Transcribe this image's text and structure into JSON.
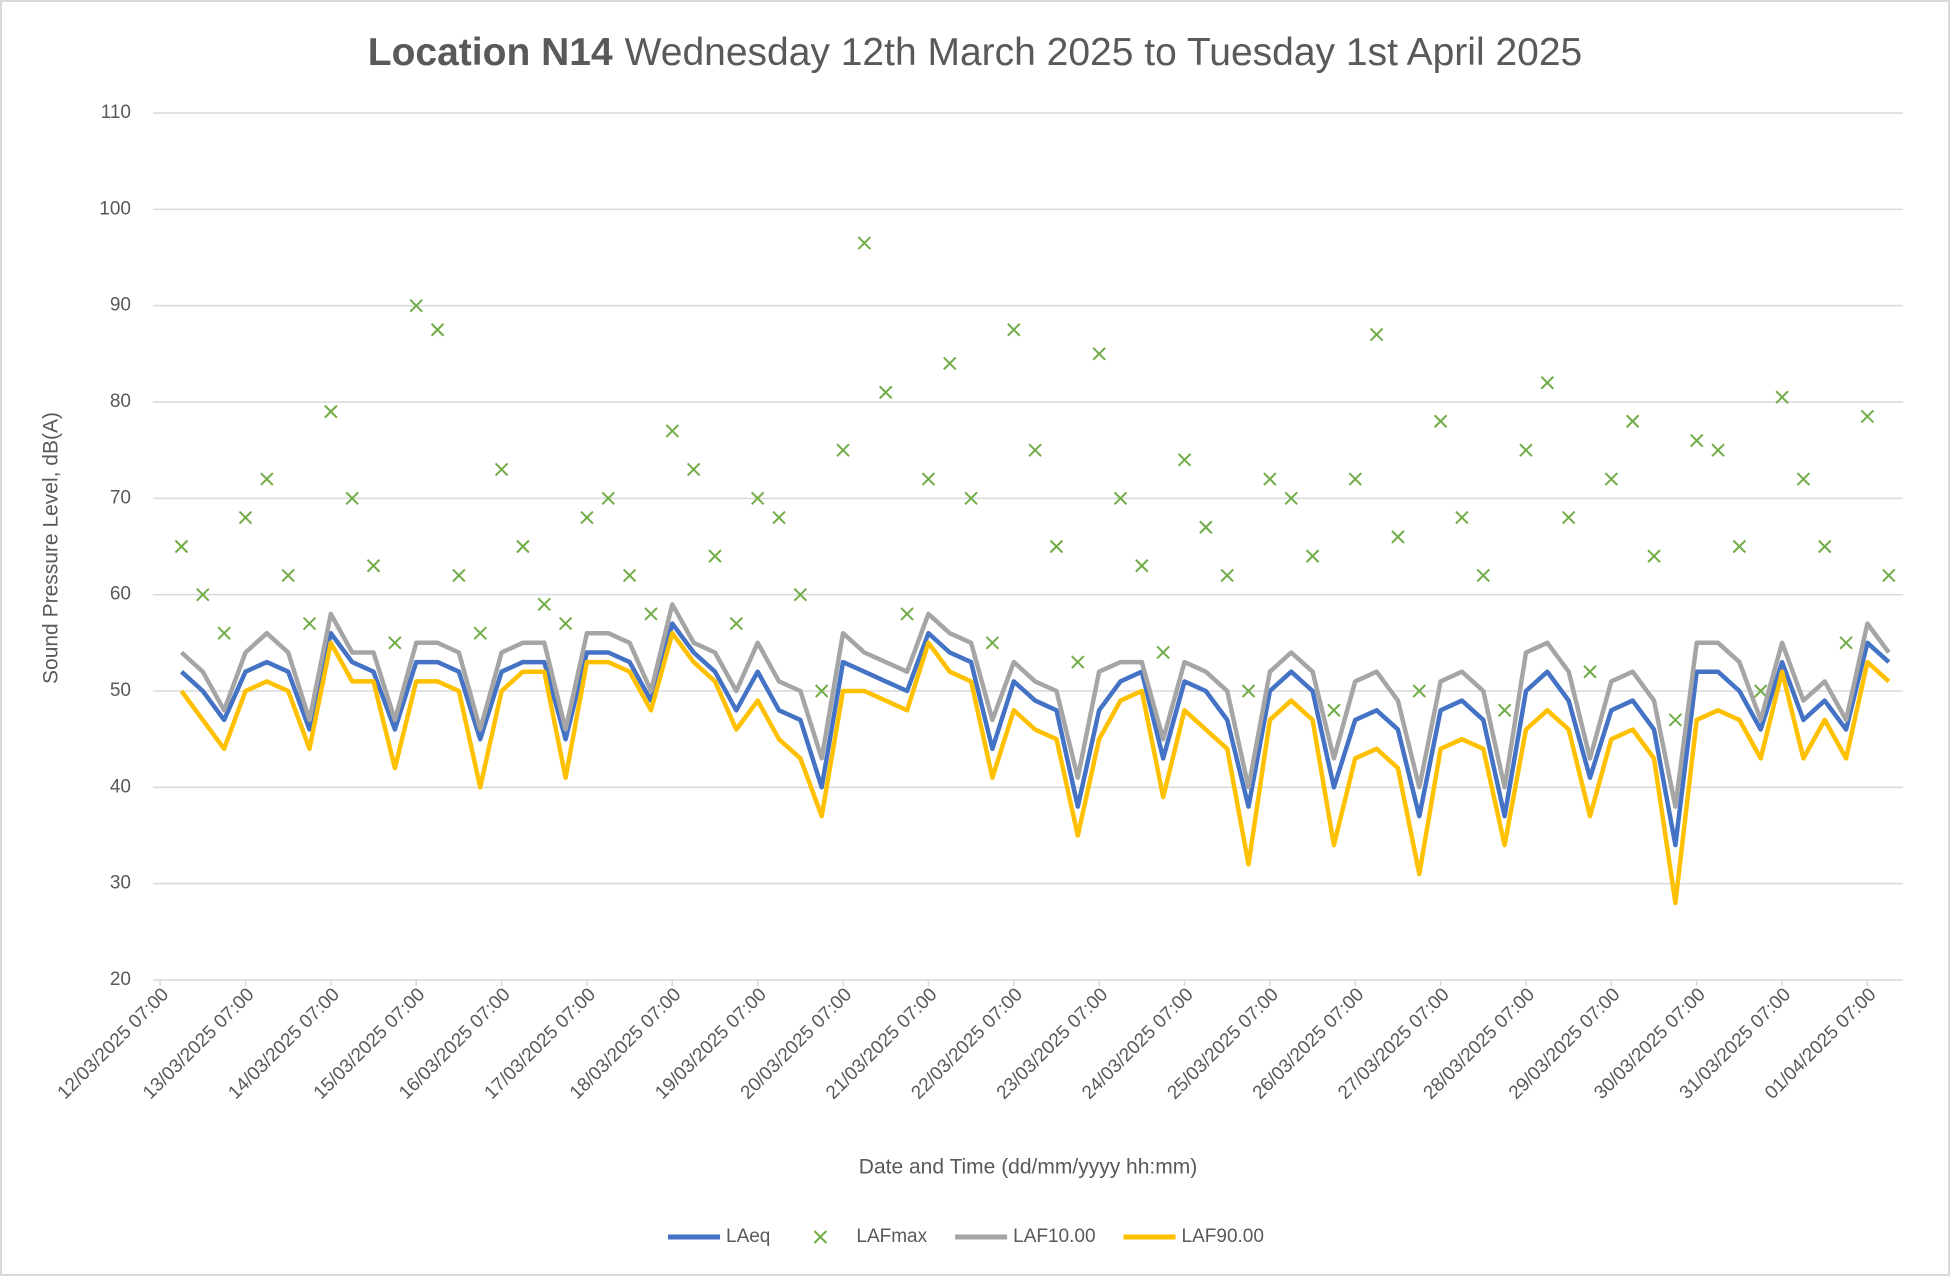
{
  "chart_data": {
    "type": "line",
    "title": [
      "Location N14",
      "Wednesday 12th March 2025 to Tuesday 1st April 2025"
    ],
    "x_label": "Date and Time (dd/mm/yyyy hh:mm)",
    "y_label": "Sound Pressure Level, dB(A)",
    "x": [
      "12/03/2025 13:00",
      "12/03/2025 19:00",
      "13/03/2025 01:00",
      "13/03/2025 07:00",
      "13/03/2025 13:00",
      "13/03/2025 19:00",
      "14/03/2025 01:00",
      "14/03/2025 07:00",
      "14/03/2025 13:00",
      "14/03/2025 19:00",
      "15/03/2025 01:00",
      "15/03/2025 07:00",
      "15/03/2025 13:00",
      "15/03/2025 19:00",
      "16/03/2025 01:00",
      "16/03/2025 07:00",
      "16/03/2025 13:00",
      "16/03/2025 19:00",
      "17/03/2025 01:00",
      "17/03/2025 07:00",
      "17/03/2025 13:00",
      "17/03/2025 19:00",
      "18/03/2025 01:00",
      "18/03/2025 07:00",
      "18/03/2025 13:00",
      "18/03/2025 19:00",
      "19/03/2025 01:00",
      "19/03/2025 07:00",
      "19/03/2025 13:00",
      "19/03/2025 19:00",
      "20/03/2025 01:00",
      "20/03/2025 07:00",
      "20/03/2025 13:00",
      "20/03/2025 19:00",
      "21/03/2025 01:00",
      "21/03/2025 07:00",
      "21/03/2025 13:00",
      "21/03/2025 19:00",
      "22/03/2025 01:00",
      "22/03/2025 07:00",
      "22/03/2025 13:00",
      "22/03/2025 19:00",
      "23/03/2025 01:00",
      "23/03/2025 07:00",
      "23/03/2025 13:00",
      "23/03/2025 19:00",
      "24/03/2025 01:00",
      "24/03/2025 07:00",
      "24/03/2025 13:00",
      "24/03/2025 19:00",
      "25/03/2025 01:00",
      "25/03/2025 07:00",
      "25/03/2025 13:00",
      "25/03/2025 19:00",
      "26/03/2025 01:00",
      "26/03/2025 07:00",
      "26/03/2025 13:00",
      "26/03/2025 19:00",
      "27/03/2025 01:00",
      "27/03/2025 07:00",
      "27/03/2025 13:00",
      "27/03/2025 19:00",
      "28/03/2025 01:00",
      "28/03/2025 07:00",
      "28/03/2025 13:00",
      "28/03/2025 19:00",
      "29/03/2025 01:00",
      "29/03/2025 07:00",
      "29/03/2025 13:00",
      "29/03/2025 19:00",
      "30/03/2025 01:00",
      "30/03/2025 07:00",
      "30/03/2025 13:00",
      "30/03/2025 19:00",
      "31/03/2025 01:00",
      "31/03/2025 07:00",
      "31/03/2025 13:00",
      "31/03/2025 19:00",
      "01/04/2025 01:00",
      "01/04/2025 07:00",
      "01/04/2025 13:00"
    ],
    "series": [
      {
        "name": "LAeq",
        "color": "#4472c4",
        "type": "line",
        "values": [
          52,
          50,
          47,
          52,
          53,
          52,
          46,
          56,
          53,
          52,
          46,
          53,
          53,
          52,
          45,
          52,
          53,
          53,
          45,
          54,
          54,
          53,
          49,
          57,
          54,
          52,
          48,
          52,
          48,
          47,
          40,
          53,
          52,
          51,
          50,
          56,
          54,
          53,
          44,
          51,
          49,
          48,
          38,
          48,
          51,
          52,
          43,
          51,
          50,
          47,
          38,
          50,
          52,
          50,
          40,
          47,
          48,
          46,
          37,
          48,
          49,
          47,
          37,
          50,
          52,
          49,
          41,
          48,
          49,
          46,
          34,
          52,
          52,
          50,
          46,
          53,
          47,
          49,
          46,
          55,
          53
        ]
      },
      {
        "name": "LAFmax",
        "color": "#70ad47",
        "type": "scatter",
        "marker": "x",
        "values": [
          65,
          60,
          56,
          68,
          72,
          62,
          57,
          79,
          70,
          63,
          55,
          90,
          87.5,
          62,
          56,
          73,
          65,
          59,
          57,
          68,
          70,
          62,
          58,
          77,
          73,
          64,
          57,
          70,
          68,
          60,
          50,
          75,
          96.5,
          81,
          58,
          72,
          84,
          70,
          55,
          87.5,
          75,
          65,
          53,
          85,
          70,
          63,
          54,
          74,
          67,
          62,
          50,
          72,
          70,
          64,
          48,
          72,
          87,
          66,
          50,
          78,
          68,
          62,
          48,
          75,
          82,
          68,
          52,
          72,
          78,
          64,
          47,
          76,
          75,
          65,
          50,
          80.5,
          72,
          65,
          55,
          78.5,
          62
        ]
      },
      {
        "name": "LAF10.00",
        "color": "#a5a5a5",
        "type": "line",
        "values": [
          54,
          52,
          48,
          54,
          56,
          54,
          47,
          58,
          54,
          54,
          47,
          55,
          55,
          54,
          46,
          54,
          55,
          55,
          46,
          56,
          56,
          55,
          50,
          59,
          55,
          54,
          50,
          55,
          51,
          50,
          43,
          56,
          54,
          53,
          52,
          58,
          56,
          55,
          47,
          53,
          51,
          50,
          41,
          52,
          53,
          53,
          45,
          53,
          52,
          50,
          40,
          52,
          54,
          52,
          43,
          51,
          52,
          49,
          40,
          51,
          52,
          50,
          40,
          54,
          55,
          52,
          43,
          51,
          52,
          49,
          38,
          55,
          55,
          53,
          47,
          55,
          49,
          51,
          47,
          57,
          54
        ]
      },
      {
        "name": "LAF90.00",
        "color": "#ffc000",
        "type": "line",
        "values": [
          50,
          47,
          44,
          50,
          51,
          50,
          44,
          55,
          51,
          51,
          42,
          51,
          51,
          50,
          40,
          50,
          52,
          52,
          41,
          53,
          53,
          52,
          48,
          56,
          53,
          51,
          46,
          49,
          45,
          43,
          37,
          50,
          50,
          49,
          48,
          55,
          52,
          51,
          41,
          48,
          46,
          45,
          35,
          45,
          49,
          50,
          39,
          48,
          46,
          44,
          32,
          47,
          49,
          47,
          34,
          43,
          44,
          42,
          31,
          44,
          45,
          44,
          34,
          46,
          48,
          46,
          37,
          45,
          46,
          43,
          28,
          47,
          48,
          47,
          43,
          52,
          43,
          47,
          43,
          53,
          51
        ]
      }
    ],
    "xlim": [
      "12/03/2025 05:00",
      "01/04/2025 17:00"
    ],
    "xticks": [
      "12/03/2025 07:00",
      "13/03/2025 07:00",
      "14/03/2025 07:00",
      "15/03/2025 07:00",
      "16/03/2025 07:00",
      "17/03/2025 07:00",
      "18/03/2025 07:00",
      "19/03/2025 07:00",
      "20/03/2025 07:00",
      "21/03/2025 07:00",
      "22/03/2025 07:00",
      "23/03/2025 07:00",
      "24/03/2025 07:00",
      "25/03/2025 07:00",
      "26/03/2025 07:00",
      "27/03/2025 07:00",
      "28/03/2025 07:00",
      "29/03/2025 07:00",
      "30/03/2025 07:00",
      "31/03/2025 07:00",
      "01/04/2025 07:00"
    ],
    "ylim": [
      20,
      110
    ],
    "yticks": [
      20,
      30,
      40,
      50,
      60,
      70,
      80,
      90,
      100,
      110
    ],
    "grid": true,
    "legend": "bottom"
  }
}
